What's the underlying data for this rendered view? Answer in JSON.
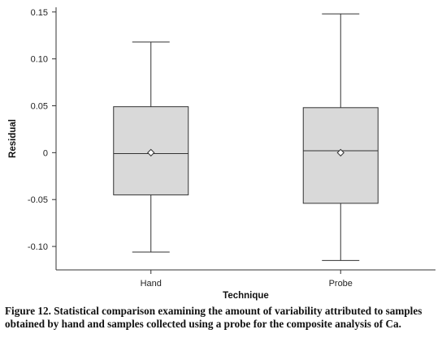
{
  "chart_data": {
    "type": "box",
    "ylabel": "Residual",
    "xlabel": "Technique",
    "ylim": [
      -0.125,
      0.155
    ],
    "yticks": [
      0.15,
      0.1,
      0.05,
      0,
      -0.05,
      -0.1
    ],
    "ytick_labels": [
      "0.15",
      "0.10",
      "0.05",
      "0",
      "-0.05",
      "-0.10"
    ],
    "categories": [
      "Hand",
      "Probe"
    ],
    "boxes": [
      {
        "category": "Hand",
        "whisker_low": -0.106,
        "q1": -0.045,
        "median": -0.001,
        "q3": 0.049,
        "whisker_high": 0.118,
        "mean": 0.0
      },
      {
        "category": "Probe",
        "whisker_low": -0.115,
        "q1": -0.054,
        "median": 0.002,
        "q3": 0.048,
        "whisker_high": 0.148,
        "mean": 0.0
      }
    ],
    "box_fill": "#d9d9d9",
    "line_color": "#333333",
    "grid": false
  },
  "caption": "Figure 12. Statistical comparison examining the amount of variability attributed to samples obtained by hand and samples collected using a probe for the composite analysis of Ca."
}
